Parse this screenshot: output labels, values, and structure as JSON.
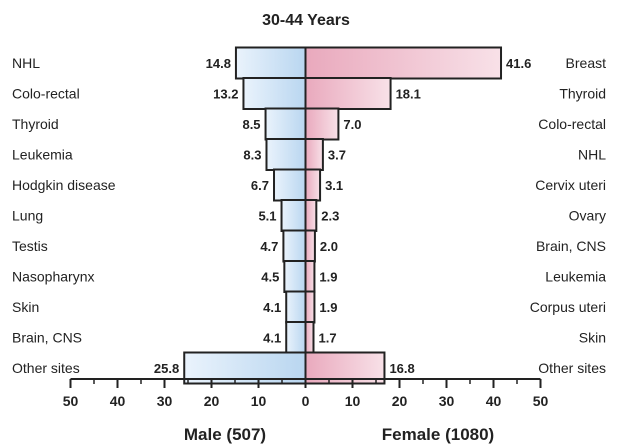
{
  "chart_data": {
    "type": "bar",
    "title": "30-44 Years",
    "layout": "population-pyramid",
    "male": {
      "label": "Male (507)",
      "color": "#cde3f7",
      "categories": [
        "NHL",
        "Colo-rectal",
        "Thyroid",
        "Leukemia",
        "Hodgkin disease",
        "Lung",
        "Testis",
        "Nasopharynx",
        "Skin",
        "Brain, CNS",
        "Other sites"
      ],
      "values": [
        14.8,
        13.2,
        8.5,
        8.3,
        6.7,
        5.1,
        4.7,
        4.5,
        4.1,
        4.1,
        25.8
      ],
      "value_labels": [
        "14.8",
        "13.2",
        "8.5",
        "8.3",
        "6.7",
        "5.1",
        "4.7",
        "4.5",
        "4.1",
        "4.1",
        "25.8"
      ]
    },
    "female": {
      "label": "Female (1080)",
      "color": "#f2c9d6",
      "categories": [
        "Breast",
        "Thyroid",
        "Colo-rectal",
        "NHL",
        "Cervix uteri",
        "Ovary",
        "Brain, CNS",
        "Leukemia",
        "Corpus uteri",
        "Skin",
        "Other sites"
      ],
      "values": [
        41.6,
        18.1,
        7.0,
        3.7,
        3.1,
        2.3,
        2.0,
        1.9,
        1.9,
        1.7,
        16.8
      ],
      "value_labels": [
        "41.6",
        "18.1",
        "7.0",
        "3.7",
        "3.1",
        "2.3",
        "2.0",
        "1.9",
        "1.9",
        "1.7",
        "16.8"
      ]
    },
    "xlim": [
      -50,
      50
    ],
    "ticks": [
      "50",
      "40",
      "30",
      "20",
      "10",
      "0",
      "10",
      "20",
      "30",
      "40",
      "50"
    ],
    "tick_values": [
      -50,
      -40,
      -30,
      -20,
      -10,
      0,
      10,
      20,
      30,
      40,
      50
    ],
    "grid": false
  }
}
